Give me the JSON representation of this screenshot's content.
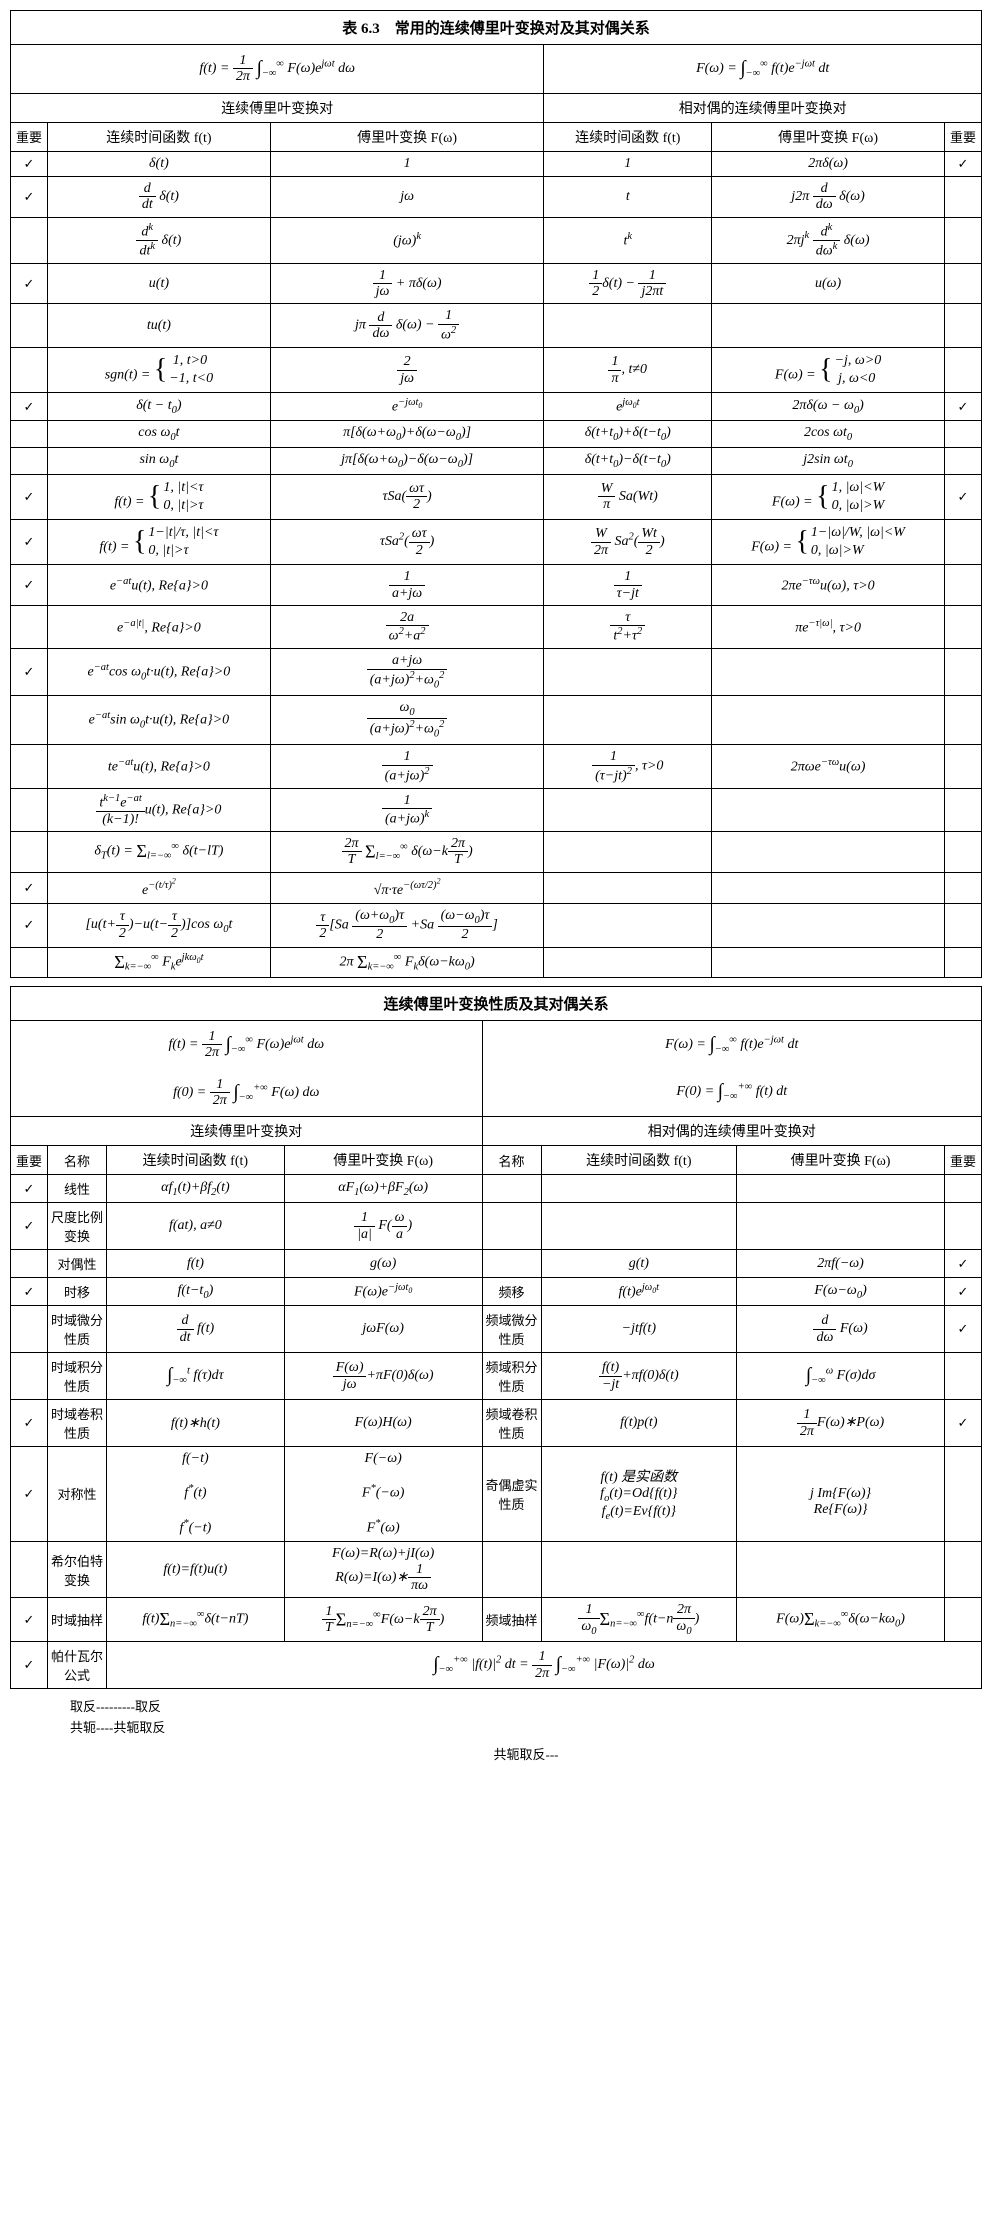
{
  "table1": {
    "title": "表 6.3　常用的连续傅里叶变换对及其对偶关系",
    "formula_left": "f(t) = (1/2π) ∫₋∞^∞ F(ω)e^{jωt} dω",
    "formula_right": "F(ω) = ∫₋∞^∞ f(t)e^{−jωt} dt",
    "section_left": "连续傅里叶变换对",
    "section_right": "相对偶的连续傅里叶变换对",
    "col_important": "重要",
    "col_ft": "连续时间函数 f(t)",
    "col_Fw": "傅里叶变换 F(ω)",
    "rows": [
      {
        "i1": "✓",
        "a": "δ(t)",
        "b": "1",
        "c": "1",
        "d": "2πδ(ω)",
        "i2": "✓"
      },
      {
        "i1": "✓",
        "a": "(d/dt)δ(t)",
        "b": "jω",
        "c": "t",
        "d": "j2π (d/dω)δ(ω)",
        "i2": ""
      },
      {
        "i1": "",
        "a": "(dᵏ/dtᵏ)δ(t)",
        "b": "(jω)ᵏ",
        "c": "tᵏ",
        "d": "2πjᵏ (dᵏ/dωᵏ)δ(ω)",
        "i2": ""
      },
      {
        "i1": "✓",
        "a": "u(t)",
        "b": "1/(jω) + πδ(ω)",
        "c": "½δ(t) − 1/(j2πt)",
        "d": "u(ω)",
        "i2": ""
      },
      {
        "i1": "",
        "a": "tu(t)",
        "b": "jπ (d/dω)δ(ω) − 1/ω²",
        "c": "",
        "d": "",
        "i2": ""
      },
      {
        "i1": "",
        "a": "sgn(t) = { 1, t>0; −1, t<0 }",
        "b": "2/(jω)",
        "c": "(1/π), t≠0",
        "d": "F(ω) = { −j, ω>0; j, ω<0 }",
        "i2": ""
      },
      {
        "i1": "✓",
        "a": "δ(t − t₀)",
        "b": "e^{−jωt₀}",
        "c": "e^{jω₀t}",
        "d": "2πδ(ω − ω₀)",
        "i2": "✓"
      },
      {
        "i1": "",
        "a": "cos ω₀t",
        "b": "π[δ(ω+ω₀)+δ(ω−ω₀)]",
        "c": "δ(t+t₀)+δ(t−t₀)",
        "d": "2cos ωt₀",
        "i2": ""
      },
      {
        "i1": "",
        "a": "sin ω₀t",
        "b": "jπ[δ(ω+ω₀)−δ(ω−ω₀)]",
        "c": "δ(t+t₀)−δ(t−t₀)",
        "d": "j2sin ωt₀",
        "i2": ""
      },
      {
        "i1": "✓",
        "a": "f(t)={1,|t|<τ; 0,|t|>τ}",
        "b": "τ·Sa(ωτ/2)",
        "c": "(W/π)·Sa(Wt)",
        "d": "F(ω)={1,|ω|<W; 0,|ω|>W}",
        "i2": "✓"
      },
      {
        "i1": "✓",
        "a": "f(t)={1−|t|/τ,|t|<τ; 0,|t|>τ}",
        "b": "τ·Sa²(ωτ/2)",
        "c": "(W/2π)·Sa²(Wt/2)",
        "d": "F(ω)={1−|ω|/W,|ω|<W; 0,|ω|>W}",
        "i2": ""
      },
      {
        "i1": "✓",
        "a": "e^{−at}u(t), Re{a}>0",
        "b": "1/(a+jω)",
        "c": "1/(τ−jt)",
        "d": "2πe^{−τω}u(ω), τ>0",
        "i2": ""
      },
      {
        "i1": "",
        "a": "e^{−a|t|}, Re{a}>0",
        "b": "2a/(ω²+a²)",
        "c": "τ/(t²+τ²)",
        "d": "πe^{−τ|ω|}, τ>0",
        "i2": ""
      },
      {
        "i1": "✓",
        "a": "e^{−at}cos ω₀t·u(t), Re{a}>0",
        "b": "(a+jω)/[(a+jω)²+ω₀²]",
        "c": "",
        "d": "",
        "i2": ""
      },
      {
        "i1": "",
        "a": "e^{−at}sin ω₀t·u(t), Re{a}>0",
        "b": "ω₀/[(a+jω)²+ω₀²]",
        "c": "",
        "d": "",
        "i2": ""
      },
      {
        "i1": "",
        "a": "te^{−at}u(t), Re{a}>0",
        "b": "1/(a+jω)²",
        "c": "1/(τ−jt)², τ>0",
        "d": "2πωe^{−τω}u(ω)",
        "i2": ""
      },
      {
        "i1": "",
        "a": "[tᵏ⁻¹e^{−at}/(k−1)!]u(t), Re{a}>0",
        "b": "1/(a+jω)ᵏ",
        "c": "",
        "d": "",
        "i2": ""
      },
      {
        "i1": "",
        "a": "δ_T(t)=Σ_{l=−∞}^{∞} δ(t−lT)",
        "b": "(2π/T) Σ_{l=−∞}^{∞} δ(ω−k·2π/T)",
        "c": "",
        "d": "",
        "i2": ""
      },
      {
        "i1": "✓",
        "a": "e^{−(t/τ)²}",
        "b": "√π·τ·e^{−(ωτ/2)²}",
        "c": "",
        "d": "",
        "i2": ""
      },
      {
        "i1": "✓",
        "a": "[u(t+τ/2)−u(t−τ/2)]cos ω₀t",
        "b": "(τ/2)[Sa((ω+ω₀)τ/2)+Sa((ω−ω₀)τ/2)]",
        "c": "",
        "d": "",
        "i2": ""
      },
      {
        "i1": "",
        "a": "Σ_{k=−∞}^{∞} Fₖ e^{jkω₀t}",
        "b": "2π Σ_{k=−∞}^{∞} Fₖ δ(ω−kω₀)",
        "c": "",
        "d": "",
        "i2": ""
      }
    ]
  },
  "table2": {
    "title": "连续傅里叶变换性质及其对偶关系",
    "formula_l1": "f(t) = (1/2π) ∫₋∞^∞ F(ω)e^{jωt} dω",
    "formula_r1": "F(ω) = ∫₋∞^∞ f(t)e^{−jωt} dt",
    "formula_l2": "f(0) = (1/2π) ∫₋∞^∞ F(ω) dω",
    "formula_r2": "F(0) = ∫₋∞^∞ f(t) dt",
    "section_left": "连续傅里叶变换对",
    "section_right": "相对偶的连续傅里叶变换对",
    "col_important": "重要",
    "col_name": "名称",
    "col_ft": "连续时间函数 f(t)",
    "col_Fw": "傅里叶变换 F(ω)",
    "rows": [
      {
        "i1": "✓",
        "n1": "线性",
        "a": "αf₁(t)+βf₂(t)",
        "b": "αF₁(ω)+βF₂(ω)",
        "n2": "",
        "c": "",
        "d": "",
        "i2": ""
      },
      {
        "i1": "✓",
        "n1": "尺度比例变换",
        "a": "f(at), a≠0",
        "b": "(1/|a|)F(ω/a)",
        "n2": "",
        "c": "",
        "d": "",
        "i2": ""
      },
      {
        "i1": "",
        "n1": "对偶性",
        "a": "f(t)",
        "b": "g(ω)",
        "n2": "",
        "c": "g(t)",
        "d": "2πf(−ω)",
        "i2": "✓"
      },
      {
        "i1": "✓",
        "n1": "时移",
        "a": "f(t−t₀)",
        "b": "F(ω)e^{−jωt₀}",
        "n2": "频移",
        "c": "f(t)e^{jω₀t}",
        "d": "F(ω−ω₀)",
        "i2": "✓"
      },
      {
        "i1": "",
        "n1": "时域微分性质",
        "a": "(d/dt)f(t)",
        "b": "jωF(ω)",
        "n2": "频域微分性质",
        "c": "−jtf(t)",
        "d": "(d/dω)F(ω)",
        "i2": "✓"
      },
      {
        "i1": "",
        "n1": "时域积分性质",
        "a": "∫₋∞^t f(τ)dτ",
        "b": "F(ω)/(jω)+πF(0)δ(ω)",
        "n2": "频域积分性质",
        "c": "f(t)/(−jt)+πf(0)δ(t)",
        "d": "∫₋∞^ω F(σ)dσ",
        "i2": ""
      },
      {
        "i1": "✓",
        "n1": "时域卷积性质",
        "a": "f(t)∗h(t)",
        "b": "F(ω)H(ω)",
        "n2": "频域卷积性质",
        "c": "f(t)p(t)",
        "d": "(1/2π)F(ω)∗P(ω)",
        "i2": "✓"
      },
      {
        "i1": "✓",
        "n1": "对称性",
        "a": "f(−t)\nf*(t)\nf*(−t)",
        "b": "F(−ω)\nF*(−ω)\nF*(ω)",
        "n2": "奇偶虚实性质",
        "c": "f(t) 是实函数\nf_o(t)=Od{f(t)}\nf_e(t)=Ev{f(t)}",
        "d": "\nj·Im{F(ω)}\nRe{F(ω)}",
        "i2": ""
      },
      {
        "i1": "",
        "n1": "希尔伯特变换",
        "a": "f(t)=f(t)u(t)",
        "b": "F(ω)=R(ω)+jI(ω)\nR(ω)=I(ω)∗(1/πω)",
        "n2": "",
        "c": "",
        "d": "",
        "i2": ""
      },
      {
        "i1": "✓",
        "n1": "时域抽样",
        "a": "f(t)Σₙ δ(t−nT)",
        "b": "(1/T)Σₙ F(ω−k·2π/T)",
        "n2": "频域抽样",
        "c": "(1/ω₀)Σₙ f(t−n·2π/ω₀)",
        "d": "F(ω)Σₖ δ(ω−kω₀)",
        "i2": ""
      },
      {
        "i1": "✓",
        "n1": "帕什瓦尔公式",
        "parseval": "∫₋∞^∞ |f(t)|² dt = (1/2π) ∫₋∞^∞ |F(ω)|² dω"
      }
    ]
  },
  "footer": {
    "line1": "取反---------取反",
    "line2": "共轭----共轭取反",
    "line3": "共轭取反---"
  }
}
